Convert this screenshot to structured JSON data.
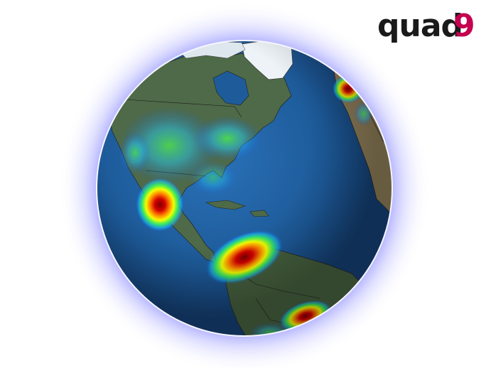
{
  "logo": {
    "main": "quad",
    "accent": "9",
    "dark_color": "#1a1a1a",
    "accent_color": "#c4004f"
  },
  "globe": {
    "ocean_color": "#1f5f9f",
    "land_color": "#4f6b4a",
    "ice_color": "#eef3f7",
    "glow_color": "#8a8aff"
  },
  "heatmap_legend_order": [
    "blue",
    "cyan",
    "green",
    "yellow",
    "orange",
    "red",
    "dark-red"
  ]
}
